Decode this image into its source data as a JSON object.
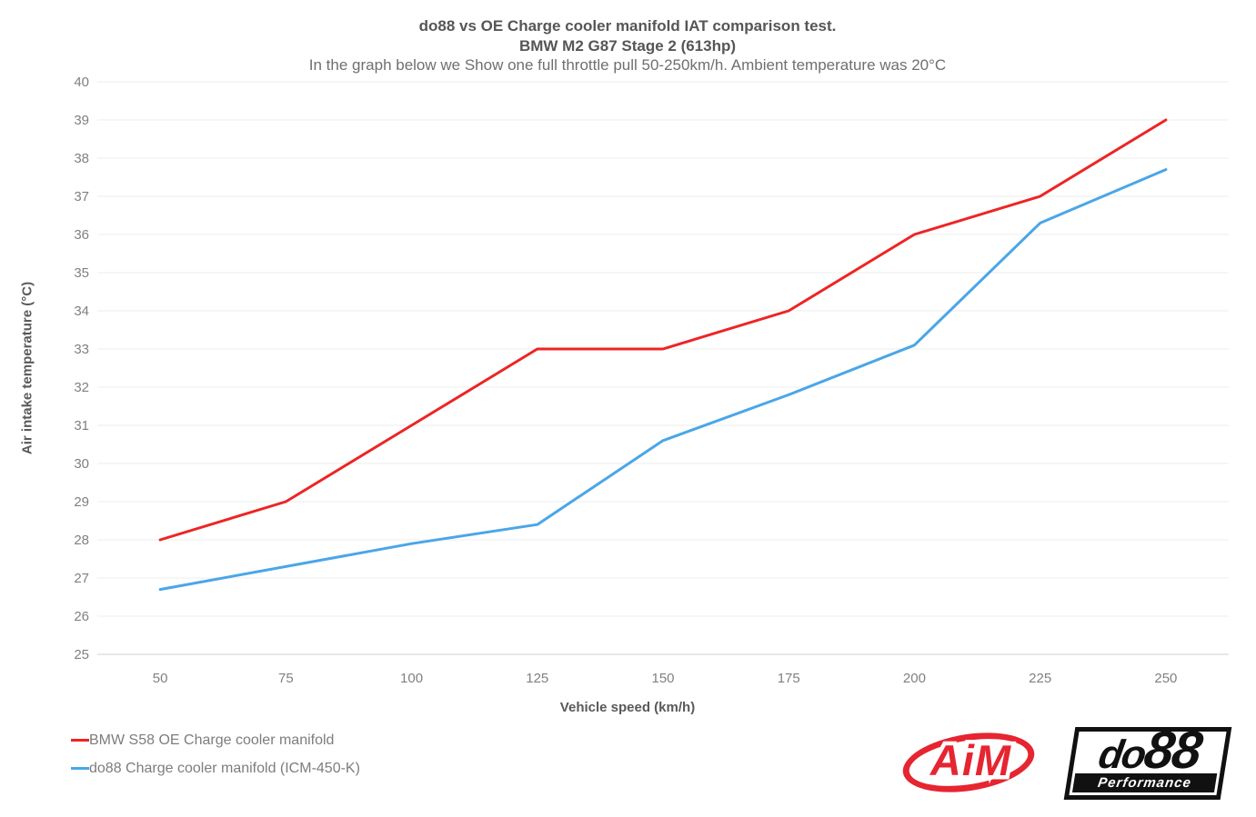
{
  "titles": {
    "line1": "do88 vs OE Charge cooler manifold IAT comparison test.",
    "line2": "BMW M2 G87 Stage 2  (613hp)",
    "line3": "In the graph below we Show one full throttle pull 50-250km/h. Ambient temperature was 20°C"
  },
  "chart_data": {
    "type": "line",
    "categories": [
      50,
      75,
      100,
      125,
      150,
      175,
      200,
      225,
      250
    ],
    "series": [
      {
        "name": "BMW S58 OE Charge cooler manifold",
        "color": "#ee2424",
        "values": [
          28,
          29,
          31,
          33,
          33,
          34,
          36,
          37,
          39
        ]
      },
      {
        "name": "do88 Charge cooler manifold (ICM-450-K)",
        "color": "#4aa6e8",
        "values": [
          26.7,
          27.3,
          27.9,
          28.4,
          30.6,
          31.8,
          33.1,
          36.3,
          37.7
        ]
      }
    ],
    "xlabel": "Vehicle speed (km/h)",
    "ylabel": "Air intake temperature (°C)",
    "ylim": [
      25,
      40
    ],
    "y_tick_step": 1,
    "grid": "horizontal-only",
    "gridline_color": "#f1f1f1",
    "baseline_color": "#d9d9d9",
    "tick_label_color": "#808080",
    "legend_position": "bottom-left"
  },
  "logos": {
    "aim_text": "AiM",
    "aim_color": "#e62530",
    "do88_text_part1": "do",
    "do88_text_part2": "88",
    "do88_sub": "Performance",
    "do88_color": "#111111"
  }
}
